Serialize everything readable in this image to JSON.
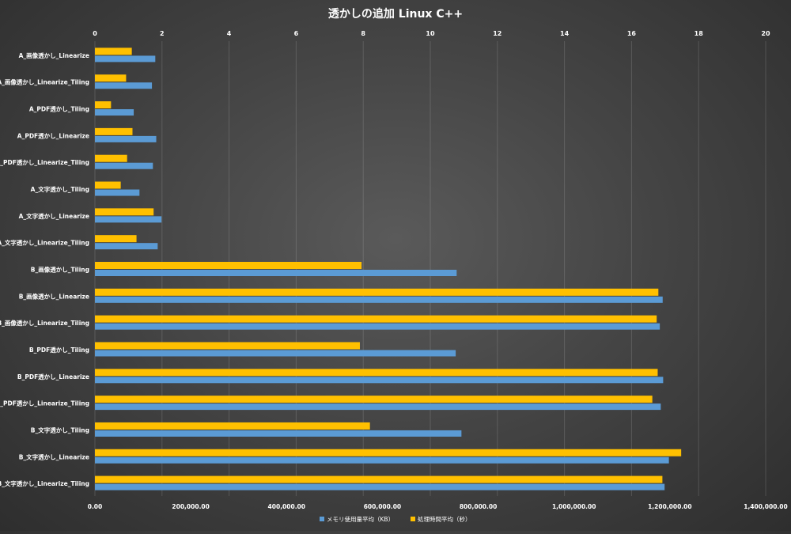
{
  "chart_data": {
    "type": "bar",
    "orientation": "horizontal",
    "title": "透かしの追加 Linux C++",
    "categories": [
      "A_画像透かし_Linearize",
      "A_画像透かし_Linearize_Tiling",
      "A_PDF透かし_Tiling",
      "A_PDF透かし_Linearize",
      "A_PDF透かし_Linearize_Tiling",
      "A_文字透かし_Tiling",
      "A_文字透かし_Linearize",
      "A_文字透かし_Linearize_Tiling",
      "B_画像透かし_Tiling",
      "B_画像透かし_Linearize",
      "B_画像透かし_Linearize_Tiling",
      "B_PDF透かし_Tiling",
      "B_PDF透かし_Linearize",
      "B_PDF透かし_Linearize_Tiling",
      "B_文字透かし_Tiling",
      "B_文字透かし_Linearize",
      "B_文字透かし_Linearize_Tiling"
    ],
    "series": [
      {
        "name": "メモリ使用量平均（KB）",
        "axis": "bottom",
        "color": "#5b9bd5",
        "values": [
          126000,
          119000,
          81000,
          128000,
          121000,
          93000,
          139000,
          131000,
          755000,
          1185000,
          1179000,
          753000,
          1186000,
          1181000,
          765000,
          1198000,
          1189000
        ]
      },
      {
        "name": "処理時間平均（秒）",
        "axis": "top",
        "color": "#ffc000",
        "values": [
          1.1,
          0.93,
          0.48,
          1.12,
          0.96,
          0.77,
          1.75,
          1.24,
          7.95,
          16.8,
          16.75,
          7.9,
          16.78,
          16.62,
          8.2,
          17.48,
          16.92
        ]
      }
    ],
    "x_bottom": {
      "min": 0,
      "max": 1400000,
      "ticks": [
        "0.00",
        "200,000.00",
        "400,000.00",
        "600,000.00",
        "800,000.00",
        "1,000,000.00",
        "1,200,000.00",
        "1,400,000.00"
      ]
    },
    "x_top": {
      "min": 0,
      "max": 20,
      "ticks": [
        "0",
        "2",
        "4",
        "6",
        "8",
        "10",
        "12",
        "14",
        "16",
        "18",
        "20"
      ]
    },
    "grid": true,
    "legend_position": "bottom"
  }
}
